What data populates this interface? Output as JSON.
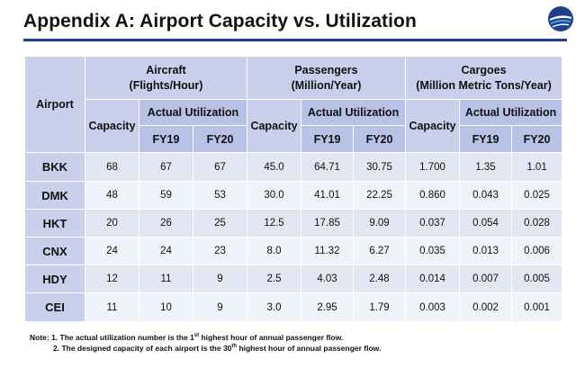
{
  "title": "Appendix A:  Airport Capacity vs. Utilization",
  "header": {
    "airport": "Airport",
    "capacity": "Capacity",
    "actual_utilization": "Actual Utilization",
    "fy19": "FY19",
    "fy20": "FY20",
    "groups": {
      "aircraft": {
        "line1": "Aircraft",
        "line2": "(Flights/Hour)"
      },
      "passengers": {
        "line1": "Passengers",
        "line2": "(Million/Year)"
      },
      "cargoes": {
        "line1": "Cargoes",
        "line2": "(Million Metric Tons/Year)"
      }
    }
  },
  "rows": [
    {
      "airport": "BKK",
      "ac_cap": "68",
      "ac_fy19": "67",
      "ac_fy20": "67",
      "px_cap": "45.0",
      "px_fy19": "64.71",
      "px_fy20": "30.75",
      "cg_cap": "1.700",
      "cg_fy19": "1.35",
      "cg_fy20": "1.01"
    },
    {
      "airport": "DMK",
      "ac_cap": "48",
      "ac_fy19": "59",
      "ac_fy20": "53",
      "px_cap": "30.0",
      "px_fy19": "41.01",
      "px_fy20": "22.25",
      "cg_cap": "0.860",
      "cg_fy19": "0.043",
      "cg_fy20": "0.025"
    },
    {
      "airport": "HKT",
      "ac_cap": "20",
      "ac_fy19": "26",
      "ac_fy20": "25",
      "px_cap": "12.5",
      "px_fy19": "17.85",
      "px_fy20": "9.09",
      "cg_cap": "0.037",
      "cg_fy19": "0.054",
      "cg_fy20": "0.028"
    },
    {
      "airport": "CNX",
      "ac_cap": "24",
      "ac_fy19": "24",
      "ac_fy20": "23",
      "px_cap": "8.0",
      "px_fy19": "11.32",
      "px_fy20": "6.27",
      "cg_cap": "0.035",
      "cg_fy19": "0.013",
      "cg_fy20": "0.006"
    },
    {
      "airport": "HDY",
      "ac_cap": "12",
      "ac_fy19": "11",
      "ac_fy20": "9",
      "px_cap": "2.5",
      "px_fy19": "4.03",
      "px_fy20": "2.48",
      "cg_cap": "0.014",
      "cg_fy19": "0.007",
      "cg_fy20": "0.005"
    },
    {
      "airport": "CEI",
      "ac_cap": "11",
      "ac_fy19": "10",
      "ac_fy20": "9",
      "px_cap": "3.0",
      "px_fy19": "2.95",
      "px_fy20": "1.79",
      "cg_cap": "0.003",
      "cg_fy19": "0.002",
      "cg_fy20": "0.001"
    }
  ],
  "notes": {
    "n1_pre": "Note: 1. The actual utilization number is the 1",
    "n1_sup": "st",
    "n1_post": " highest hour of annual passenger flow.",
    "n2_pre": "2. The designed capacity of each airport is the 30",
    "n2_sup": "th",
    "n2_post": " highest hour of annual passenger flow."
  },
  "logo": {
    "icon": "airport-logo-icon",
    "colors": [
      "#1f3f8f",
      "#3aa0d8"
    ]
  }
}
